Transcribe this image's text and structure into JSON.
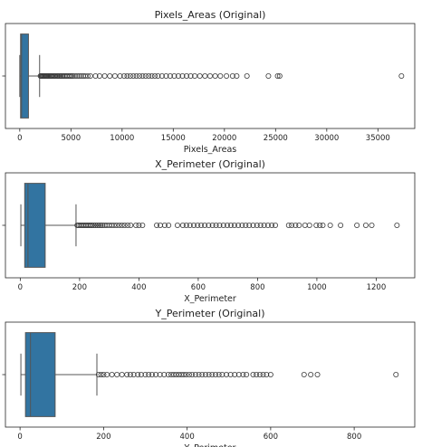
{
  "colors": {
    "box_fill": "#3274a1",
    "frame": "#262626",
    "whisker": "#555555",
    "outlier_edge": "#3a3a3a"
  },
  "chart_data": [
    {
      "type": "box",
      "orientation": "horizontal",
      "title": "Pixels_Areas (Original)",
      "xlabel": "Pixels_Areas",
      "xlim": [
        -1400,
        38600
      ],
      "xticks": [
        0,
        5000,
        10000,
        15000,
        20000,
        25000,
        30000,
        35000
      ],
      "grid": false,
      "box": {
        "whisker_low": 2,
        "q1": 80,
        "median": 175,
        "q3": 850,
        "whisker_high": 1940
      },
      "outliers": [
        2020,
        2100,
        2180,
        2260,
        2340,
        2420,
        2500,
        2600,
        2700,
        2800,
        2900,
        3000,
        3100,
        3200,
        3320,
        3440,
        3560,
        3680,
        3800,
        3920,
        4050,
        4180,
        4320,
        4460,
        4600,
        4750,
        4900,
        5050,
        5200,
        5400,
        5600,
        5800,
        6000,
        6200,
        6400,
        6650,
        6900,
        7400,
        7800,
        8300,
        8800,
        9300,
        9800,
        10200,
        10500,
        10800,
        11100,
        11400,
        11700,
        12000,
        12300,
        12600,
        12900,
        13200,
        13500,
        13900,
        14300,
        14700,
        15100,
        15500,
        15900,
        16300,
        16700,
        17100,
        17600,
        18100,
        18600,
        19100,
        19600,
        20200,
        20800,
        21200,
        22200,
        24300,
        25200,
        25400,
        37300
      ]
    },
    {
      "type": "box",
      "orientation": "horizontal",
      "title": "X_Perimeter (Original)",
      "xlabel": "X_Perimeter",
      "xlim": [
        -50,
        1330
      ],
      "xticks": [
        0,
        200,
        400,
        600,
        800,
        1000,
        1200
      ],
      "grid": false,
      "box": {
        "whisker_low": 2,
        "q1": 15,
        "median": 26,
        "q3": 84,
        "whisker_high": 188
      },
      "outliers": [
        192,
        197,
        202,
        207,
        212,
        217,
        222,
        227,
        232,
        237,
        242,
        248,
        254,
        260,
        266,
        272,
        278,
        285,
        292,
        300,
        308,
        316,
        325,
        334,
        343,
        352,
        362,
        372,
        390,
        400,
        412,
        460,
        472,
        487,
        500,
        530,
        548,
        560,
        572,
        585,
        598,
        610,
        622,
        635,
        648,
        660,
        672,
        685,
        698,
        710,
        722,
        735,
        748,
        760,
        772,
        785,
        798,
        810,
        822,
        835,
        848,
        860,
        905,
        915,
        928,
        940,
        960,
        975,
        998,
        1010,
        1020,
        1045,
        1080,
        1135,
        1165,
        1185,
        1270
      ]
    },
    {
      "type": "box",
      "orientation": "horizontal",
      "title": "Y_Perimeter (Original)",
      "xlabel": "Y_Perimeter",
      "xlim": [
        -35,
        945
      ],
      "xticks": [
        0,
        200,
        400,
        600,
        800
      ],
      "grid": false,
      "box": {
        "whisker_low": 2,
        "q1": 13,
        "median": 25,
        "q3": 84,
        "whisker_high": 184
      },
      "outliers": [
        188,
        194,
        200,
        208,
        220,
        232,
        244,
        256,
        264,
        272,
        282,
        290,
        300,
        308,
        316,
        325,
        335,
        345,
        355,
        362,
        368,
        374,
        380,
        386,
        392,
        398,
        405,
        412,
        420,
        428,
        436,
        444,
        452,
        460,
        468,
        476,
        484,
        494,
        504,
        514,
        524,
        534,
        542,
        558,
        566,
        574,
        582,
        590,
        600,
        680,
        696,
        712,
        900
      ]
    }
  ]
}
